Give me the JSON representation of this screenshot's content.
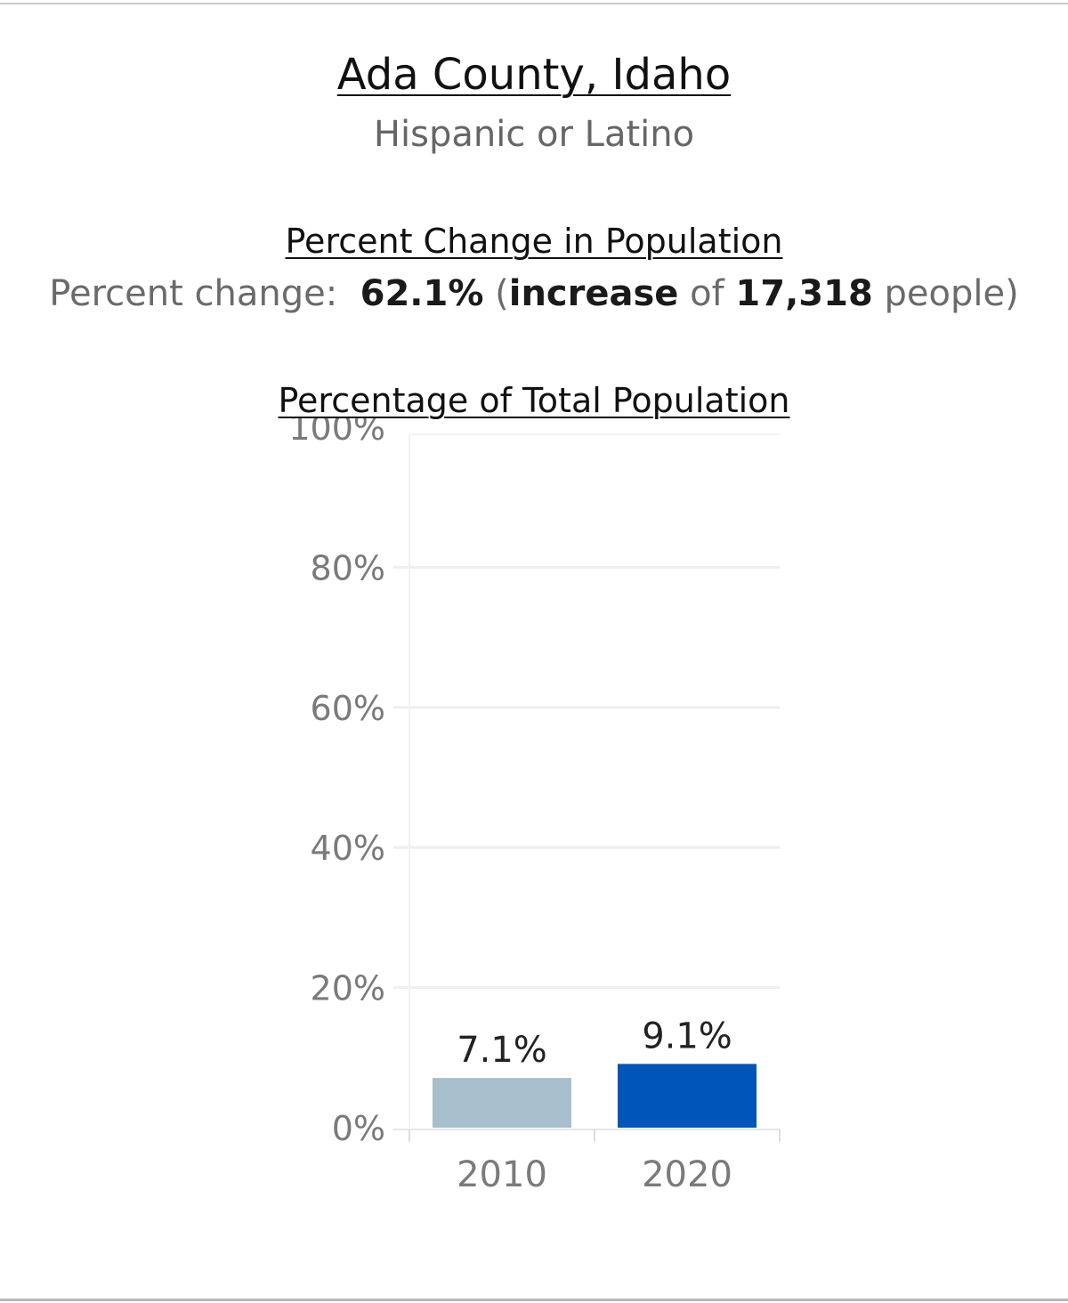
{
  "header": {
    "county": "Ada County, Idaho",
    "group": "Hispanic or Latino"
  },
  "change": {
    "section_title": "Percent Change in Population",
    "label": "Percent change:",
    "percent": "62.1%",
    "open_paren": "(",
    "direction": "increase",
    "of_word": "of",
    "people_count": "17,318",
    "people_word": "people)"
  },
  "chart_section": {
    "title": "Percentage of Total Population"
  },
  "colors": {
    "bar_2010": "#a7bfcc",
    "bar_2020": "#0055b8",
    "gridline": "#eeeeee",
    "axis_text": "#7a7a7a"
  },
  "chart_data": {
    "type": "bar",
    "title": "Percentage of Total Population",
    "xlabel": "",
    "ylabel": "",
    "categories": [
      "2010",
      "2020"
    ],
    "values": [
      7.1,
      9.1
    ],
    "value_labels": [
      "7.1%",
      "9.1%"
    ],
    "ylim": [
      0,
      100
    ],
    "yticks": [
      0,
      20,
      40,
      60,
      80,
      100
    ],
    "ytick_labels": [
      "0%",
      "20%",
      "40%",
      "60%",
      "80%",
      "100%"
    ],
    "grid": true,
    "legend": "none"
  }
}
